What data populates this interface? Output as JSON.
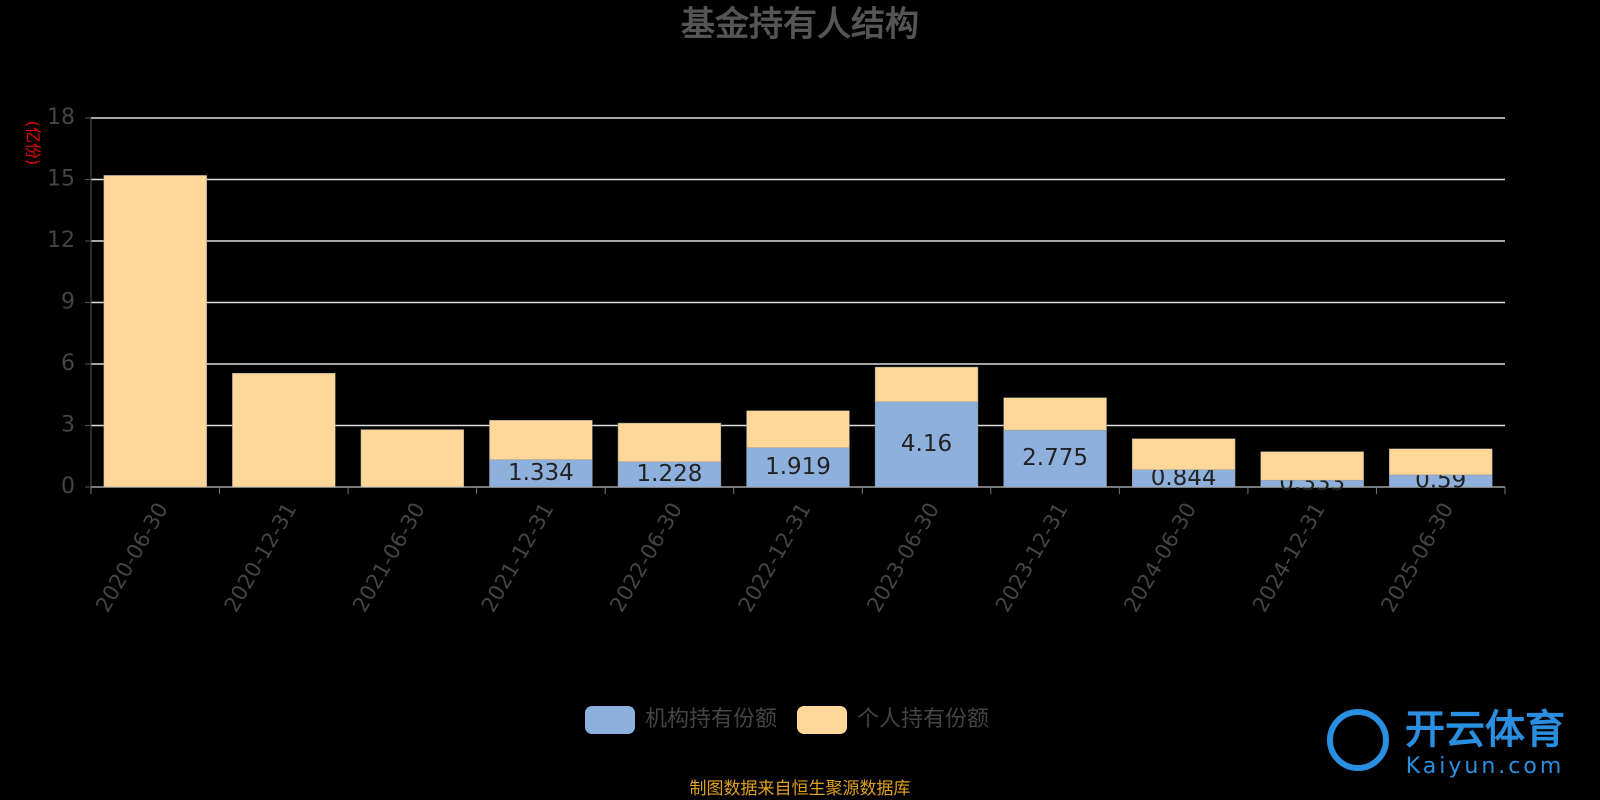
{
  "chart_data": {
    "type": "stacked_bar",
    "title": "基金持有人结构",
    "y_label": "(亿份)",
    "categories": [
      "2020-06-30",
      "2020-12-31",
      "2021-06-30",
      "2021-12-31",
      "2022-06-30",
      "2022-12-31",
      "2023-06-30",
      "2023-12-31",
      "2024-06-30",
      "2024-12-31",
      "2025-06-30"
    ],
    "series": [
      {
        "name": "机构持有份额",
        "color": "#8eb0dc",
        "values": [
          0,
          0,
          0,
          1.334,
          1.228,
          1.919,
          4.16,
          2.775,
          0.844,
          0.333,
          0.59
        ]
      },
      {
        "name": "个人持有份额",
        "color": "#ffd899",
        "values": [
          15.2,
          5.55,
          2.8,
          1.92,
          1.89,
          1.8,
          1.69,
          1.58,
          1.51,
          1.39,
          1.27
        ]
      }
    ],
    "ylim": [
      0,
      18
    ],
    "yticks": [
      0,
      3,
      6,
      9,
      12,
      15,
      18
    ],
    "grid": true,
    "legend": "bottom",
    "source": "制图数据来自恒生聚源数据库",
    "watermark": {
      "brand": "开云体育",
      "url": "Kaiyun.com"
    }
  }
}
